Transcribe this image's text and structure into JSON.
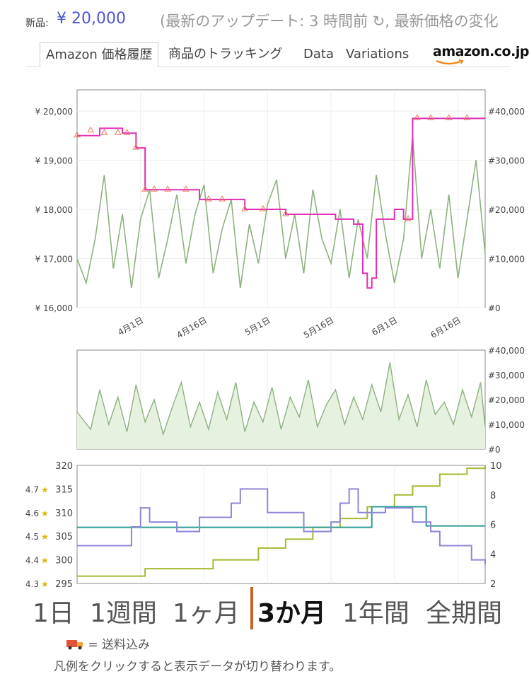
{
  "header": {
    "price_label": "新品:",
    "price_value": "¥ 20,000",
    "update_text": "(最新のアップデート: 3 時間前 ↻, 最新価格の変化"
  },
  "tabs": [
    {
      "label": "Amazon 価格履歴",
      "active": true
    },
    {
      "label": "商品のトラッキング",
      "active": false
    },
    {
      "label": "Data",
      "active": false
    },
    {
      "label": "Variations",
      "active": false
    }
  ],
  "logo": {
    "text": "amazon.co.jp"
  },
  "colors": {
    "price": "#e22db4",
    "price_marker": "#e87a5a",
    "rank": "#8db27f",
    "rating": "#8e86d8",
    "reviews": "#a7b82f",
    "offer": "#2f9e96",
    "accent": "#c8632a",
    "new_price_text": "#4f57d0"
  },
  "chart_data": [
    {
      "type": "line",
      "title": "",
      "x_ticks": [
        "4月1日",
        "4月16日",
        "5月1日",
        "5月16日",
        "6月1日",
        "6月16日"
      ],
      "y_left_ticks": [
        "¥ 20,000",
        "¥ 19,000",
        "¥ 18,000",
        "¥ 17,000",
        "¥ 16,000"
      ],
      "y_right_ticks": [
        "#40,000",
        "#30,000",
        "#20,000",
        "#10,000",
        "#0"
      ],
      "ylim_left": [
        16000,
        20000
      ],
      "ylim_right": [
        0,
        40000
      ],
      "series": [
        {
          "axis": "left",
          "points": [
            [
              0,
              19500
            ],
            [
              5,
              19650
            ],
            [
              10,
              19550
            ],
            [
              12,
              19550
            ],
            [
              13,
              19250
            ],
            [
              14,
              19250
            ],
            [
              15,
              18400
            ],
            [
              26,
              18400
            ],
            [
              27,
              18200
            ],
            [
              36,
              18200
            ],
            [
              37,
              18000
            ],
            [
              45,
              18000
            ],
            [
              46,
              17900
            ],
            [
              54,
              17900
            ],
            [
              57,
              17800
            ],
            [
              61,
              17700
            ],
            [
              63,
              16700
            ],
            [
              64,
              16400
            ],
            [
              65,
              16600
            ],
            [
              66,
              17800
            ],
            [
              69,
              17800
            ],
            [
              70,
              18000
            ],
            [
              72,
              17800
            ],
            [
              73,
              17800
            ],
            [
              74,
              19850
            ],
            [
              90,
              19850
            ]
          ]
        },
        {
          "axis": "right",
          "points": [
            [
              0,
              10000
            ],
            [
              2,
              5000
            ],
            [
              4,
              14000
            ],
            [
              6,
              27000
            ],
            [
              8,
              8000
            ],
            [
              10,
              19000
            ],
            [
              12,
              4000
            ],
            [
              14,
              18000
            ],
            [
              16,
              24000
            ],
            [
              18,
              6000
            ],
            [
              20,
              14000
            ],
            [
              22,
              23000
            ],
            [
              24,
              9000
            ],
            [
              26,
              19000
            ],
            [
              28,
              25000
            ],
            [
              30,
              7000
            ],
            [
              32,
              16000
            ],
            [
              34,
              22000
            ],
            [
              36,
              4000
            ],
            [
              38,
              17000
            ],
            [
              40,
              9000
            ],
            [
              42,
              21000
            ],
            [
              44,
              26000
            ],
            [
              46,
              10000
            ],
            [
              48,
              19000
            ],
            [
              50,
              7000
            ],
            [
              52,
              24000
            ],
            [
              54,
              14000
            ],
            [
              56,
              9000
            ],
            [
              58,
              20000
            ],
            [
              60,
              6000
            ],
            [
              62,
              18000
            ],
            [
              64,
              10000
            ],
            [
              66,
              27000
            ],
            [
              68,
              15000
            ],
            [
              70,
              5000
            ],
            [
              72,
              14000
            ],
            [
              74,
              35000
            ],
            [
              76,
              10000
            ],
            [
              78,
              20000
            ],
            [
              80,
              8000
            ],
            [
              82,
              23000
            ],
            [
              84,
              6000
            ],
            [
              86,
              18000
            ],
            [
              88,
              30000
            ],
            [
              90,
              11000
            ]
          ]
        }
      ]
    },
    {
      "type": "area",
      "y_right_ticks": [
        "#40,000",
        "#30,000",
        "#20,000",
        "#10,000",
        "#0"
      ],
      "ylim": [
        0,
        40000
      ],
      "series": [
        {
          "points": [
            [
              0,
              15000
            ],
            [
              3,
              8000
            ],
            [
              5,
              24000
            ],
            [
              7,
              10000
            ],
            [
              9,
              21000
            ],
            [
              11,
              7000
            ],
            [
              13,
              26000
            ],
            [
              15,
              11000
            ],
            [
              17,
              20000
            ],
            [
              19,
              6000
            ],
            [
              21,
              17000
            ],
            [
              23,
              27000
            ],
            [
              25,
              9000
            ],
            [
              27,
              19000
            ],
            [
              29,
              8000
            ],
            [
              31,
              23000
            ],
            [
              33,
              12000
            ],
            [
              35,
              27000
            ],
            [
              37,
              7000
            ],
            [
              39,
              19000
            ],
            [
              41,
              11000
            ],
            [
              43,
              25000
            ],
            [
              45,
              8000
            ],
            [
              47,
              21000
            ],
            [
              49,
              13000
            ],
            [
              51,
              28000
            ],
            [
              53,
              9000
            ],
            [
              55,
              18000
            ],
            [
              57,
              24000
            ],
            [
              59,
              10000
            ],
            [
              61,
              21000
            ],
            [
              63,
              12000
            ],
            [
              65,
              26000
            ],
            [
              67,
              15000
            ],
            [
              69,
              35000
            ],
            [
              71,
              12000
            ],
            [
              73,
              22000
            ],
            [
              75,
              9000
            ],
            [
              77,
              28000
            ],
            [
              79,
              14000
            ],
            [
              81,
              19000
            ],
            [
              83,
              10000
            ],
            [
              85,
              24000
            ],
            [
              87,
              13000
            ],
            [
              89,
              27000
            ],
            [
              90,
              9000
            ]
          ]
        }
      ]
    },
    {
      "type": "line",
      "y_left_ticks": [
        "320",
        "315",
        "310",
        "305",
        "300",
        "295"
      ],
      "y_right_ticks": [
        "10",
        "8",
        "6",
        "4",
        "2"
      ],
      "star_ticks": [
        "4.7",
        "4.6",
        "4.5",
        "4.4",
        "4.3"
      ],
      "ylim_left": [
        295,
        320
      ],
      "ylim_right": [
        2,
        10
      ],
      "series": [
        {
          "axis": "left",
          "points": [
            [
              0,
              303
            ],
            [
              10,
              303
            ],
            [
              12,
              307
            ],
            [
              14,
              311
            ],
            [
              16,
              308
            ],
            [
              20,
              308
            ],
            [
              22,
              306
            ],
            [
              25,
              306
            ],
            [
              27,
              309
            ],
            [
              32,
              309
            ],
            [
              34,
              312
            ],
            [
              36,
              315
            ],
            [
              40,
              315
            ],
            [
              42,
              310
            ],
            [
              48,
              310
            ],
            [
              50,
              306
            ],
            [
              54,
              306
            ],
            [
              56,
              308
            ],
            [
              58,
              312
            ],
            [
              60,
              315
            ],
            [
              62,
              310
            ],
            [
              66,
              310
            ],
            [
              68,
              311
            ],
            [
              72,
              311
            ],
            [
              74,
              308
            ],
            [
              78,
              306
            ],
            [
              80,
              303
            ],
            [
              85,
              303
            ],
            [
              87,
              300
            ],
            [
              90,
              299
            ]
          ]
        },
        {
          "axis": "right",
          "points": [
            [
              0,
              2.5
            ],
            [
              15,
              3
            ],
            [
              30,
              3.6
            ],
            [
              40,
              4.4
            ],
            [
              46,
              5
            ],
            [
              52,
              5.8
            ],
            [
              58,
              6.4
            ],
            [
              64,
              7.2
            ],
            [
              70,
              8
            ],
            [
              74,
              8.6
            ],
            [
              80,
              9.4
            ],
            [
              86,
              9.8
            ],
            [
              90,
              10
            ]
          ]
        },
        {
          "axis": "right",
          "points": [
            [
              0,
              5.8
            ],
            [
              64,
              5.8
            ],
            [
              65,
              7.2
            ],
            [
              76,
              7.2
            ],
            [
              77,
              5.9
            ],
            [
              90,
              5.9
            ]
          ]
        }
      ]
    }
  ],
  "ranges": [
    {
      "label": "1日",
      "active": false
    },
    {
      "label": "1週間",
      "active": false
    },
    {
      "label": "1ヶ月",
      "active": false
    },
    {
      "label": "3か月",
      "active": true
    },
    {
      "label": "1年間",
      "active": false
    },
    {
      "label": "全期間",
      "active": false
    }
  ],
  "footer": {
    "shipping_note": "= 送料込み",
    "legend_hint": "凡例をクリックすると表示データが切り替わります。"
  }
}
